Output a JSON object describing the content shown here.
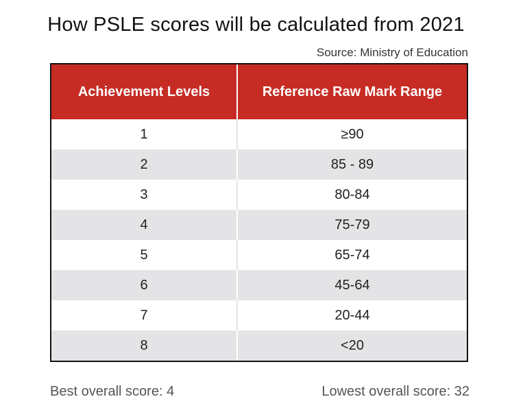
{
  "title": "How PSLE scores will be calculated from 2021",
  "source": "Source: Ministry of Education",
  "table": {
    "headers": [
      "Achievement Levels",
      "Reference Raw Mark Range"
    ],
    "rows": [
      [
        "1",
        "≥90"
      ],
      [
        "2",
        "85 - 89"
      ],
      [
        "3",
        "80-84"
      ],
      [
        "4",
        "75-79"
      ],
      [
        "5",
        "65-74"
      ],
      [
        "6",
        "45-64"
      ],
      [
        "7",
        "20-44"
      ],
      [
        "8",
        "<20"
      ]
    ]
  },
  "footer": {
    "best": "Best overall score: 4",
    "lowest": "Lowest overall score: 32"
  },
  "colors": {
    "header_bg": "#c62c24",
    "stripe": "#e4e4e6"
  }
}
